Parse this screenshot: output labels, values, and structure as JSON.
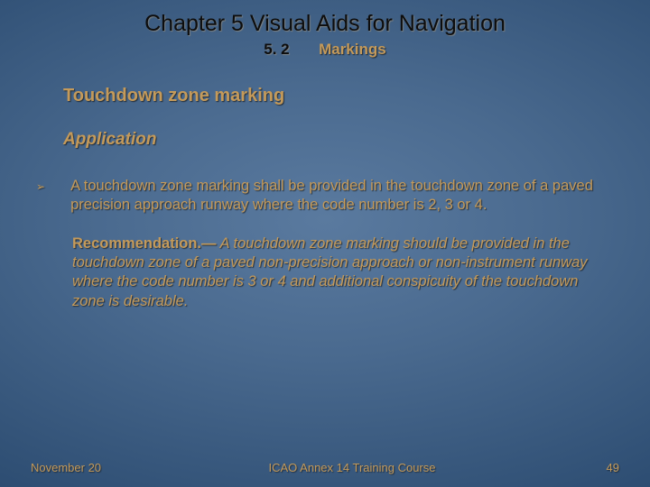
{
  "colors": {
    "text_gold": "#c49a5a",
    "text_dark": "#0d0d0d",
    "bg_center": "#5a7a9f",
    "bg_edge": "#0a2a4f"
  },
  "chapter": {
    "title": "Chapter 5   Visual Aids for Navigation",
    "section_number": "5. 2",
    "section_label": "Markings"
  },
  "subtitle": "Touchdown zone marking",
  "application_heading": "Application",
  "bullet": {
    "marker": "➢",
    "text": "A touchdown zone marking shall be provided in the touchdown zone of a paved precision approach runway where the code number is 2, 3 or 4."
  },
  "recommendation": {
    "label": "Recommendation.—",
    "body": " A touchdown zone marking should be provided in the touchdown zone of a paved non-precision approach or non-instrument runway where the code number is 3 or 4 and additional conspicuity of the touchdown zone is desirable."
  },
  "footer": {
    "date": "November 20",
    "course": "ICAO Annex 14 Training Course",
    "page": "49"
  },
  "typography": {
    "chapter_title_pt": 25,
    "section_pt": 17,
    "subtitle_pt": 20,
    "application_pt": 19,
    "body_pt": 16.5,
    "footer_pt": 13
  }
}
